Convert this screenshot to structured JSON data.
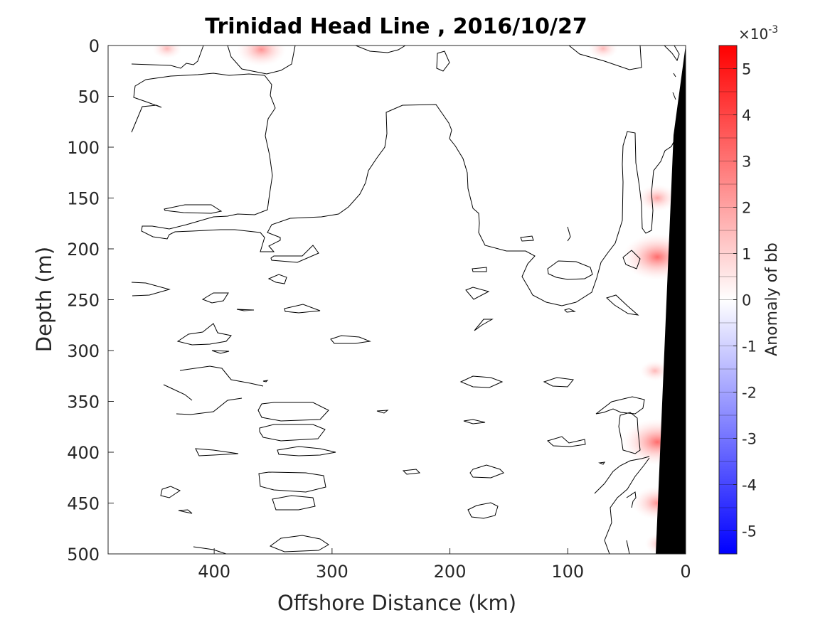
{
  "chart_data": {
    "type": "heatmap",
    "title": "Trinidad Head Line , 2016/10/27",
    "xlabel": "Offshore Distance (km)",
    "ylabel": "Depth (m)",
    "xlim": [
      490,
      0
    ],
    "ylim": [
      0,
      500
    ],
    "x_direction": "reversed",
    "y_direction": "reversed",
    "x_ticks": [
      400,
      300,
      200,
      100,
      0
    ],
    "y_ticks": [
      0,
      50,
      100,
      150,
      200,
      250,
      300,
      350,
      400,
      450,
      500
    ],
    "colorbar": {
      "label": "Anomaly of bb",
      "exponent_base": "×10",
      "exponent_power": "-3",
      "range": [
        -5.5,
        5.5
      ],
      "ticks": [
        -5,
        -4,
        -3,
        -2,
        -1,
        0,
        1,
        2,
        3,
        4,
        5
      ],
      "levels": 22,
      "colormap": "blue-white-red",
      "color_min": "#0000ff",
      "color_mid": "#ffffff",
      "color_max": "#ff0000"
    },
    "zero_contour_color": "#000000",
    "bathymetry_fill": "#000000",
    "bathymetry": [
      {
        "distance": 0,
        "depth": 0
      },
      {
        "distance": 12,
        "depth": 85
      },
      {
        "distance": 30,
        "depth": 500
      }
    ],
    "positive_anomalies": [
      {
        "distance": 440,
        "depth": 3,
        "value": 0.5
      },
      {
        "distance": 360,
        "depth": 4,
        "value": 1.5
      },
      {
        "distance": 70,
        "depth": 3,
        "value": 0.5
      },
      {
        "distance": 24,
        "depth": 208,
        "value": 2.5
      },
      {
        "distance": 24,
        "depth": 390,
        "value": 2.5
      },
      {
        "distance": 24,
        "depth": 450,
        "value": 1.5
      },
      {
        "distance": 26,
        "depth": 320,
        "value": 0.5
      },
      {
        "distance": 24,
        "depth": 150,
        "value": 1.0
      },
      {
        "distance": 22,
        "depth": 490,
        "value": 0.5
      }
    ]
  }
}
